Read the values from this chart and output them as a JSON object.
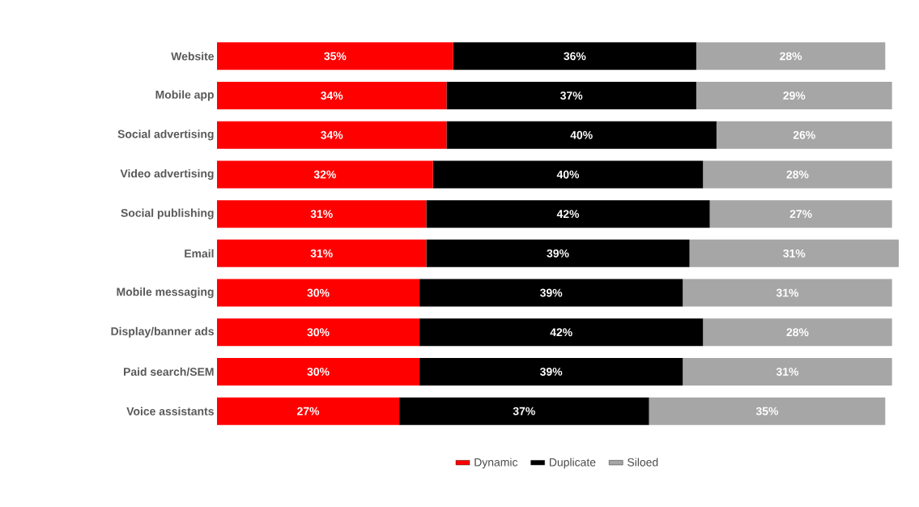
{
  "chart_data": {
    "type": "bar",
    "orientation": "horizontal",
    "stacked": true,
    "legend": "bottom",
    "tick_labels": "y",
    "categories": [
      "Website",
      "Mobile app",
      "Social advertising",
      "Video advertising",
      "Social publishing",
      "Email",
      "Mobile messaging",
      "Display/banner ads",
      "Paid search/SEM",
      "Voice assistants"
    ],
    "series": [
      {
        "name": "Dynamic",
        "color": "#ff0000",
        "values": [
          35,
          34,
          34,
          32,
          31,
          31,
          30,
          30,
          30,
          27
        ],
        "value_labels": [
          "35%",
          "34%",
          "34%",
          "32%",
          "31%",
          "31%",
          "30%",
          "30%",
          "30%",
          "27%"
        ]
      },
      {
        "name": "Duplicate",
        "color": "#000000",
        "values": [
          36,
          37,
          40,
          40,
          42,
          39,
          39,
          42,
          39,
          37
        ],
        "value_labels": [
          "36%",
          "37%",
          "40%",
          "40%",
          "42%",
          "39%",
          "39%",
          "42%",
          "39%",
          "37%"
        ]
      },
      {
        "name": "Siloed",
        "color": "#a6a6a6",
        "values": [
          28,
          29,
          26,
          28,
          27,
          31,
          31,
          28,
          31,
          35
        ],
        "value_labels": [
          "28%",
          "29%",
          "26%",
          "28%",
          "27%",
          "31%",
          "31%",
          "28%",
          "31%",
          "35%"
        ]
      }
    ]
  }
}
